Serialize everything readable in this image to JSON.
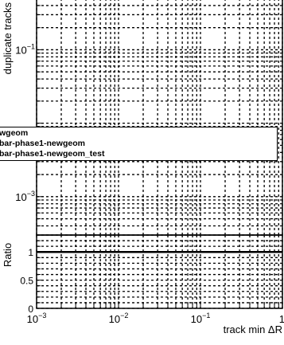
{
  "chart_data": [
    {
      "type": "line",
      "panel": "top",
      "ylabel": "duplicate tracks",
      "yscale": "log",
      "ylim": [
        0.0003,
        0.5
      ],
      "xscale": "log",
      "xlim": [
        0.001,
        1
      ],
      "y_tick_labels": [
        {
          "value": 0.1,
          "base": "10",
          "exp": "−1"
        },
        {
          "value": 0.001,
          "base": "10",
          "exp": "−3"
        }
      ],
      "grid": true,
      "legend_entries": [
        "wgeom",
        "bar-phase1-newgeom",
        "bar-phase1-newgeom_test"
      ],
      "series": []
    },
    {
      "type": "line",
      "panel": "ratio",
      "ylabel": "Ratio",
      "xlabel": "track min ΔR",
      "xscale": "log",
      "xlim": [
        0.001,
        1
      ],
      "ylim": [
        0,
        1.3
      ],
      "y_tick_labels": [
        "0",
        "0.5",
        "1"
      ],
      "x_tick_labels": [
        {
          "value": 0.001,
          "base": "10",
          "exp": "−3"
        },
        {
          "value": 0.01,
          "base": "10",
          "exp": "−2"
        },
        {
          "value": 0.1,
          "base": "10",
          "exp": "−1"
        },
        {
          "value": 1,
          "base": "1",
          "exp": ""
        }
      ],
      "grid": true,
      "series": [
        {
          "x": [
            0.001,
            1
          ],
          "y": [
            1,
            1
          ]
        }
      ]
    }
  ]
}
